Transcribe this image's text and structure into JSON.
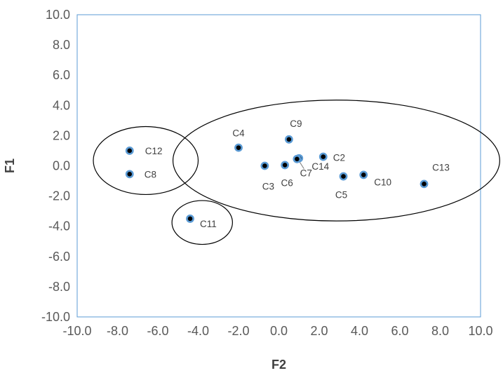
{
  "chart_data": {
    "type": "scatter",
    "title": "",
    "xlabel": "F2",
    "ylabel": "F1",
    "xlim": [
      -10.0,
      10.0
    ],
    "ylim": [
      -10.0,
      10.0
    ],
    "x_ticks": [
      "-10.0",
      "-8.0",
      "-6.0",
      "-4.0",
      "-2.0",
      "0.0",
      "2.0",
      "4.0",
      "6.0",
      "8.0",
      "10.0"
    ],
    "y_ticks": [
      "-10.0",
      "-8.0",
      "-6.0",
      "-4.0",
      "-2.0",
      "0.0",
      "2.0",
      "4.0",
      "6.0",
      "8.0",
      "10.0"
    ],
    "grid": false,
    "legend": "none",
    "marker_fill": "#000000",
    "marker_ring": "#5b9bd5",
    "border_color": "#5b9bd5",
    "points": [
      {
        "label": "C2",
        "x": 2.2,
        "y": 0.6
      },
      {
        "label": "C3",
        "x": -0.7,
        "y": 0.0
      },
      {
        "label": "C4",
        "x": -2.0,
        "y": 1.2
      },
      {
        "label": "C5",
        "x": 3.2,
        "y": -0.7
      },
      {
        "label": "C6",
        "x": 0.3,
        "y": 0.05
      },
      {
        "label": "C7",
        "x": 1.0,
        "y": 0.5
      },
      {
        "label": "C8",
        "x": -7.4,
        "y": -0.55
      },
      {
        "label": "C9",
        "x": 0.5,
        "y": 1.75
      },
      {
        "label": "C10",
        "x": 4.2,
        "y": -0.6
      },
      {
        "label": "C11",
        "x": -4.4,
        "y": -3.5
      },
      {
        "label": "C12",
        "x": -7.4,
        "y": 1.0
      },
      {
        "label": "C13",
        "x": 7.2,
        "y": -1.2
      },
      {
        "label": "C14",
        "x": 0.9,
        "y": 0.45
      }
    ],
    "clusters": [
      {
        "cx": -6.6,
        "cy": 0.35,
        "rx": 2.6,
        "ry": 2.25
      },
      {
        "cx": -3.8,
        "cy": -3.75,
        "rx": 1.5,
        "ry": 1.45
      },
      {
        "cx": 2.85,
        "cy": 0.35,
        "rx": 8.1,
        "ry": 4.0
      }
    ]
  }
}
